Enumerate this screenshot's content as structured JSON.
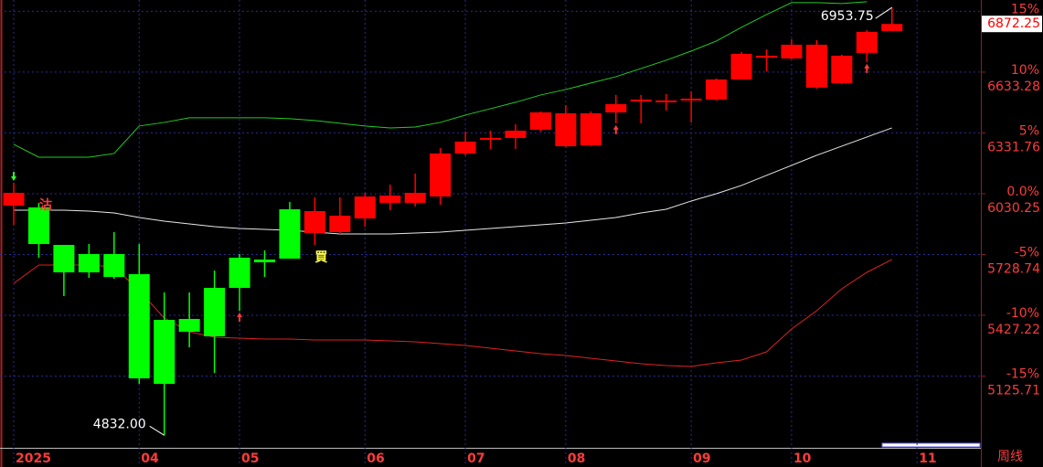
{
  "chart_data": {
    "type": "candlestick",
    "categories": [
      "2025",
      null,
      null,
      null,
      null,
      "04",
      null,
      null,
      null,
      "05",
      null,
      null,
      null,
      null,
      "06",
      null,
      null,
      null,
      "07",
      null,
      null,
      null,
      "08",
      null,
      null,
      null,
      null,
      "09",
      null,
      null,
      null,
      "10",
      null,
      null,
      null,
      null,
      "11"
    ],
    "open": [
      5971.3,
      5962.3,
      5776.3,
      5731.0,
      5731.0,
      5631.3,
      5404.5,
      5409.0,
      5563.2,
      5712.9,
      5703.8,
      5953.2,
      5835.3,
      5839.8,
      5907.8,
      5984.9,
      5984.9,
      6016.7,
      6229.8,
      6297.8,
      6306.9,
      6347.6,
      6265.9,
      6270.5,
      6433.8,
      6488.2,
      6483.7,
      6492.7,
      6497.3,
      6597.0,
      6705.8,
      6701.3,
      6556.2,
      6578.8,
      6728.5,
      6837.3,
      null
    ],
    "high": [
      6084.7,
      5984.9,
      5776.3,
      5780.9,
      5839.8,
      5780.9,
      5540.6,
      5540.6,
      5649.4,
      5731.0,
      5749.2,
      5989.4,
      6012.1,
      6012.1,
      6034.8,
      6075.6,
      6130.0,
      6257.0,
      6338.6,
      6343.1,
      6374.8,
      6438.3,
      6470.0,
      6438.3,
      6519.9,
      6519.9,
      6524.5,
      6538.0,
      6601.5,
      6733.0,
      6746.6,
      6796.5,
      6792.0,
      6719.4,
      6841.8,
      6953.75,
      null
    ],
    "low": [
      5876.1,
      5712.9,
      5522.4,
      5613.1,
      5608.6,
      5087.2,
      4832.0,
      5268.5,
      5141.6,
      5449.9,
      5617.6,
      5708.3,
      5776.3,
      5830.8,
      5867.0,
      5948.6,
      5966.8,
      5975.8,
      6220.7,
      6252.4,
      6252.4,
      6338.6,
      6261.5,
      6266.0,
      6379.4,
      6379.4,
      6442.8,
      6383.9,
      6492.7,
      6597.0,
      6637.8,
      6696.7,
      6551.6,
      6574.3,
      6683.1,
      6837.3,
      null
    ],
    "close": [
      6034.8,
      5780.9,
      5640.3,
      5640.3,
      5617.6,
      5114.4,
      5087.2,
      5345.6,
      5323.0,
      5563.2,
      5690.2,
      5708.3,
      5944.1,
      5921.4,
      6016.7,
      6021.2,
      6034.8,
      6229.8,
      6288.7,
      6306.9,
      6343.1,
      6433.8,
      6429.2,
      6429.2,
      6474.6,
      6497.3,
      6492.7,
      6501.8,
      6597.0,
      6723.9,
      6714.9,
      6769.3,
      6769.3,
      6714.9,
      6832.7,
      6872.25,
      null
    ],
    "up_color": "#ff0000",
    "down_color": "#00ff00",
    "overlays": [
      {
        "color": "#22cc22",
        "values": [
          6275.1,
          6211.6,
          6211.6,
          6211.6,
          6229.8,
          6365.8,
          6383.9,
          6406.6,
          6406.6,
          6406.6,
          6406.6,
          6402.1,
          6393.0,
          6379.4,
          6365.8,
          6356.7,
          6361.2,
          6383.9,
          6420.2,
          6451.9,
          6483.7,
          6519.9,
          6547.1,
          6578.9,
          6610.6,
          6651.4,
          6692.2,
          6737.6,
          6787.4,
          6855.4,
          6918.9,
          6977.8,
          6977.8,
          6973.3,
          6982.3,
          null,
          null
        ]
      },
      {
        "color": "#e8e8e8",
        "values": [
          5948.6,
          5948.6,
          5948.6,
          5944.1,
          5935.0,
          5912.4,
          5894.2,
          5880.6,
          5867.0,
          5857.9,
          5853.4,
          5848.9,
          5839.8,
          5830.8,
          5830.8,
          5830.8,
          5835.3,
          5839.8,
          5848.9,
          5857.9,
          5867.0,
          5876.1,
          5885.2,
          5898.7,
          5912.4,
          5935.0,
          5953.2,
          5994.0,
          6030.25,
          6071.1,
          6121.0,
          6170.8,
          6220.7,
          6266.0,
          6311.4,
          6356.7,
          null
        ]
      },
      {
        "color": "#dd2222",
        "values": [
          5585.9,
          5676.6,
          5676.6,
          5676.6,
          5667.5,
          5549.6,
          5413.6,
          5345.6,
          5318.4,
          5313.8,
          5309.3,
          5309.3,
          5304.8,
          5304.8,
          5304.8,
          5300.3,
          5295.7,
          5286.7,
          5277.6,
          5264.0,
          5250.4,
          5236.8,
          5227.7,
          5214.1,
          5200.5,
          5187.0,
          5177.9,
          5173.4,
          5191.5,
          5205.1,
          5245.9,
          5359.2,
          5449.9,
          5558.7,
          5640.3,
          5703.8,
          null
        ]
      }
    ],
    "ylim": [
      4770,
      6991
    ],
    "yticks": [
      6633.28,
      6331.76,
      6030.25,
      5728.74,
      5427.22,
      5125.71
    ],
    "y2lim": [
      -20.9,
      15.93
    ],
    "y2ticks": [
      {
        "value": 15,
        "label": "15%"
      },
      {
        "value": 10,
        "label": "10%"
      },
      {
        "value": 5,
        "label": "5%"
      },
      {
        "value": 0,
        "label": "0.0%"
      },
      {
        "value": -5,
        "label": "-5%"
      },
      {
        "value": -10,
        "label": "-10%"
      },
      {
        "value": -15,
        "label": "-15%"
      }
    ],
    "grid": true,
    "max_label": "6953.75",
    "min_label": "4832.00",
    "last_label": "6872.25",
    "period_label": "周线",
    "signals": [
      {
        "text": "沽",
        "index": 0,
        "color": "#ff3b3b"
      },
      {
        "text": "買",
        "index": 12,
        "color": "#ffff44"
      }
    ],
    "arrows": [
      {
        "index": 0,
        "dir": "down",
        "color": "#33ff33"
      },
      {
        "index": 9,
        "dir": "up",
        "color": "#ff3b3b"
      },
      {
        "index": 24,
        "dir": "up",
        "color": "#ff3b3b"
      },
      {
        "index": 34,
        "dir": "up",
        "color": "#ff3b3b"
      }
    ]
  }
}
